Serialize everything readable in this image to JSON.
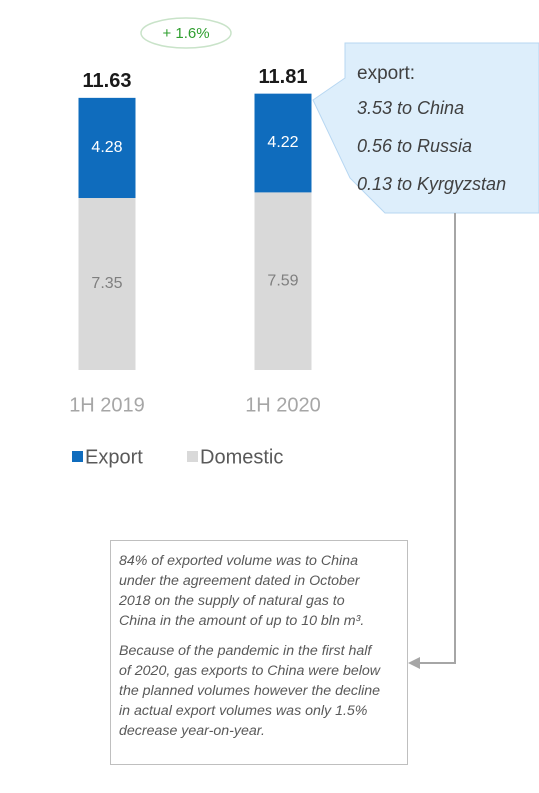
{
  "chart_data": {
    "type": "stacked_bar",
    "categories": [
      "1H 2019",
      "1H 2020"
    ],
    "series": [
      {
        "name": "Export",
        "color": "#0f6cbd",
        "values": [
          4.28,
          4.22
        ]
      },
      {
        "name": "Domestic",
        "color": "#d9d9d9",
        "values": [
          7.35,
          7.59
        ]
      }
    ],
    "totals": [
      11.63,
      11.81
    ],
    "annotation": "+ 1.6%",
    "callout": {
      "title": "export:",
      "lines": [
        "3.53 to China",
        "0.56 to Russia",
        "0.13 to Kyrgyzstan"
      ]
    },
    "note": [
      [
        "84% of exported volume was to China",
        "under the agreement dated in October",
        "2018 on the supply of natural gas to",
        "China in the amount of up to 10 bln m³."
      ],
      [
        "Because of the pandemic in the first half",
        "of 2020, gas exports to China were below",
        "the planned volumes however the decline",
        "in actual export volumes was only 1.5%",
        "decrease year-on-year."
      ]
    ]
  }
}
